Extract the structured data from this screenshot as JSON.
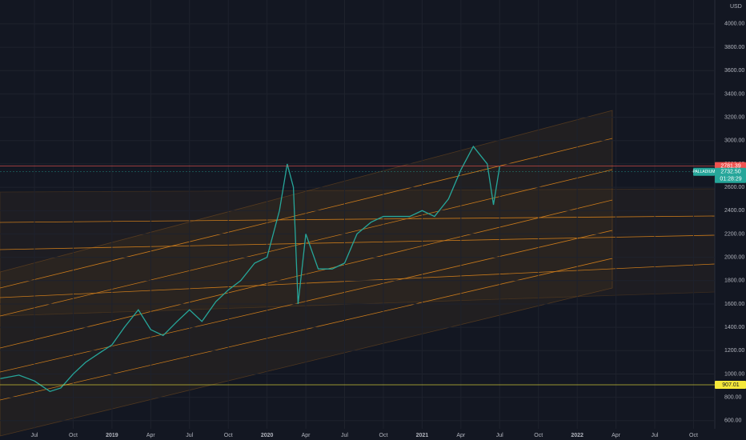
{
  "chart_data": {
    "type": "line",
    "currency": "USD",
    "x": [
      2018.28,
      2018.4,
      2018.5,
      2018.6,
      2018.67,
      2018.75,
      2018.83,
      2018.92,
      2019.0,
      2019.08,
      2019.17,
      2019.25,
      2019.33,
      2019.42,
      2019.5,
      2019.58,
      2019.67,
      2019.75,
      2019.83,
      2019.92,
      2020.0,
      2020.08,
      2020.13,
      2020.17,
      2020.2,
      2020.25,
      2020.33,
      2020.42,
      2020.5,
      2020.58,
      2020.67,
      2020.75,
      2020.83,
      2020.92,
      2021.0,
      2021.08,
      2021.17,
      2021.25,
      2021.33,
      2021.42,
      2021.46,
      2021.5
    ],
    "series": [
      {
        "name": "PALLADIUM",
        "color": "#26a69a",
        "values": [
          960,
          990,
          940,
          850,
          880,
          1000,
          1100,
          1180,
          1250,
          1400,
          1550,
          1380,
          1330,
          1450,
          1550,
          1450,
          1620,
          1720,
          1800,
          1950,
          2000,
          2400,
          2800,
          2600,
          1600,
          2200,
          1900,
          1900,
          1950,
          2200,
          2300,
          2350,
          2350,
          2350,
          2400,
          2350,
          2500,
          2750,
          2950,
          2800,
          2450,
          2780
        ]
      }
    ],
    "xlim": [
      2018.278,
      2022.887
    ],
    "xticks": [
      {
        "value": 2018.5,
        "label": "Jul"
      },
      {
        "value": 2018.75,
        "label": "Oct"
      },
      {
        "value": 2019,
        "label": "2019"
      },
      {
        "value": 2019.25,
        "label": "Apr"
      },
      {
        "value": 2019.5,
        "label": "Jul"
      },
      {
        "value": 2019.75,
        "label": "Oct"
      },
      {
        "value": 2020,
        "label": "2020"
      },
      {
        "value": 2020.25,
        "label": "Apr"
      },
      {
        "value": 2020.5,
        "label": "Jul"
      },
      {
        "value": 2020.75,
        "label": "Oct"
      },
      {
        "value": 2021,
        "label": "2021"
      },
      {
        "value": 2021.25,
        "label": "Apr"
      },
      {
        "value": 2021.5,
        "label": "Jul"
      },
      {
        "value": 2021.75,
        "label": "Oct"
      },
      {
        "value": 2022,
        "label": "2022"
      },
      {
        "value": 2022.25,
        "label": "Apr"
      },
      {
        "value": 2022.5,
        "label": "Jul"
      },
      {
        "value": 2022.75,
        "label": "Oct"
      }
    ],
    "ylim": [
      530,
      4205
    ],
    "yticks": [
      {
        "value": 600,
        "label": "600.00"
      },
      {
        "value": 800,
        "label": "800.00"
      },
      {
        "value": 1000,
        "label": "1000.00"
      },
      {
        "value": 1200,
        "label": "1200.00"
      },
      {
        "value": 1400,
        "label": "1400.00"
      },
      {
        "value": 1600,
        "label": "1600.00"
      },
      {
        "value": 1800,
        "label": "1800.00"
      },
      {
        "value": 2000,
        "label": "2000.00"
      },
      {
        "value": 2200,
        "label": "2200.00"
      },
      {
        "value": 2400,
        "label": "2400.00"
      },
      {
        "value": 2600,
        "label": "2600.00"
      },
      {
        "value": 2800,
        "label": "2800.00"
      },
      {
        "value": 3000,
        "label": "3000.00"
      },
      {
        "value": 3200,
        "label": "3200.00"
      },
      {
        "value": 3400,
        "label": "3400.00"
      },
      {
        "value": 3600,
        "label": "3600.00"
      },
      {
        "value": 3800,
        "label": "3800.00"
      },
      {
        "value": 4000,
        "label": "4000.00"
      }
    ],
    "grid": true,
    "price_labels": [
      {
        "value": 2781.39,
        "label": "2781.39",
        "color": "#ef5350"
      },
      {
        "value": 2732.5,
        "label": "2732.50",
        "color": "#26a69a",
        "symbol": "PALLADIUM",
        "countdown": "01:28:29"
      },
      {
        "value": 907.01,
        "label": "907.01",
        "color": "#f5e83a"
      }
    ]
  }
}
